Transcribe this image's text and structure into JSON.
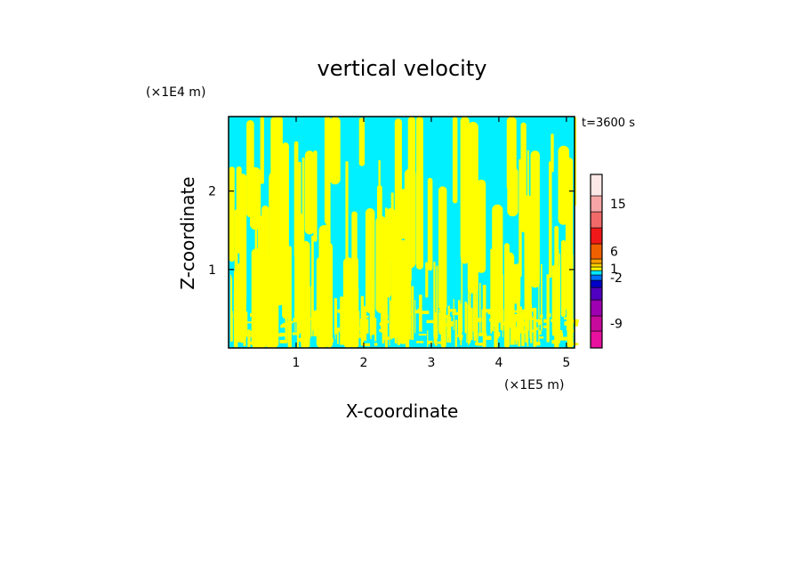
{
  "chart_data": {
    "type": "heatmap",
    "title": "vertical velocity",
    "xlabel": "X-coordinate",
    "ylabel": "Z-coordinate",
    "x_unit": "(×1E5 m)",
    "y_unit": "(×1E4 m)",
    "time_label": "t=3600 s",
    "x_ticks": [
      1,
      2,
      3,
      4,
      5
    ],
    "y_ticks": [
      1,
      2
    ],
    "xlim": [
      0,
      5.12
    ],
    "ylim": [
      0,
      2.95
    ],
    "field_colors": {
      "updraft": "#ffff00",
      "downdraft": "#00f0ff"
    },
    "colorbar": {
      "tick_labels": [
        "15",
        "6",
        "1",
        "-2",
        "-9"
      ],
      "bins": [
        {
          "color": "#e8109e"
        },
        {
          "color": "#c80a9a"
        },
        {
          "color": "#9c00b0"
        },
        {
          "color": "#5000c0"
        },
        {
          "color": "#0000c8"
        },
        {
          "color": "#0070ff"
        },
        {
          "color": "#00e8ff"
        },
        {
          "color": "#ffff00"
        },
        {
          "color": "#ffd000"
        },
        {
          "color": "#ff9e00"
        },
        {
          "color": "#f06000"
        },
        {
          "color": "#f01818"
        },
        {
          "color": "#f06a6a"
        },
        {
          "color": "#f6a6a6"
        },
        {
          "color": "#fde8e8"
        }
      ]
    }
  }
}
